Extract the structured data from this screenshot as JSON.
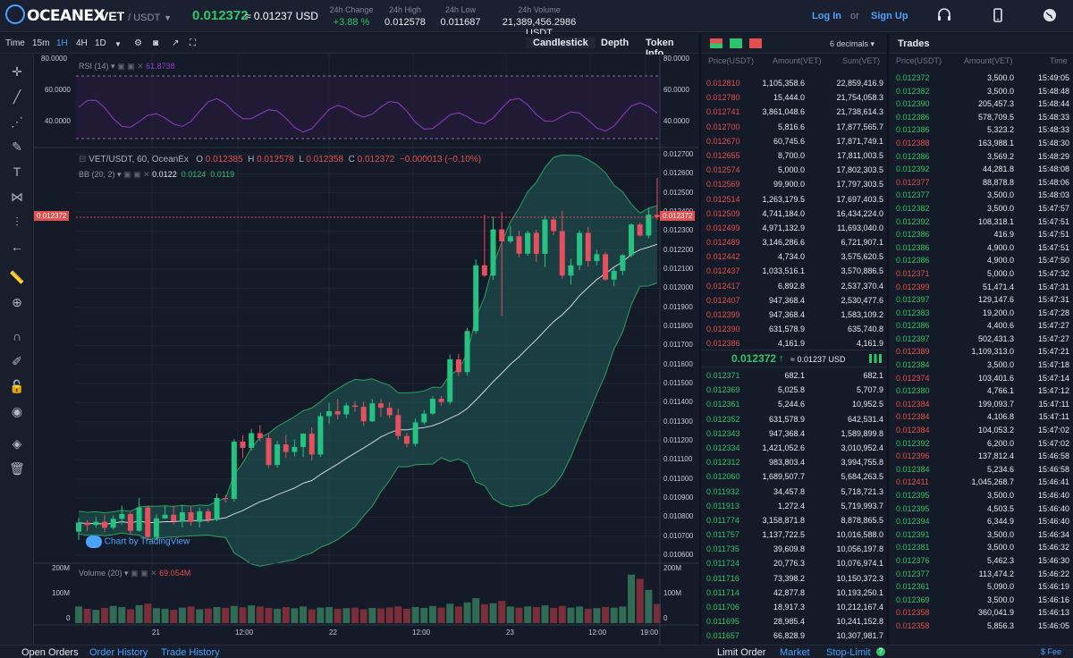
{
  "topbar": {
    "brand": "OCEANEX",
    "pair": "VET",
    "quote": "/ USDT",
    "last_price": "0.012372",
    "last_usd": "≈ 0.01237 USD",
    "stats": [
      {
        "k": "24h Change",
        "v": "+3.88 %"
      },
      {
        "k": "24h High",
        "v": "0.012578"
      },
      {
        "k": "24h Low",
        "v": "0.011687"
      },
      {
        "k": "24h Volume",
        "v": "21,389,456.2986 USDT"
      }
    ],
    "login": "Log In",
    "or": "or",
    "signup": "Sign Up"
  },
  "timeframes": [
    "Time",
    "15m",
    "1H",
    "4H",
    "1D"
  ],
  "view_tabs": [
    "Candlestick",
    "Depth",
    "Token Info"
  ],
  "chart": {
    "rsi_label": "RSI (14)",
    "rsi_value": "61.8738",
    "rsi_ticks": [
      "80.0000",
      "60.0000",
      "40.0000"
    ],
    "legend_symbol": "VET/USDT, 60, OceanEx",
    "o": "0.012385",
    "h": "0.012578",
    "l": "0.012358",
    "c": "0.012372",
    "chg": "−0.000013 (−0.10%)",
    "bb_label": "BB (20, 2)",
    "bb_vals": [
      "0.0122",
      "0.0124",
      "0.0119"
    ],
    "price_ticks": [
      "0.012700",
      "0.012600",
      "0.012500",
      "0.012400",
      "0.012300",
      "0.012200",
      "0.012100",
      "0.012000",
      "0.011900",
      "0.011800",
      "0.011700",
      "0.011600",
      "0.011500",
      "0.011400",
      "0.011300",
      "0.011200",
      "0.011100",
      "0.011000",
      "0.010900",
      "0.010800",
      "0.010700",
      "0.010600"
    ],
    "current_price_tag": "0.012372",
    "watermark": "Chart by TradingView",
    "volume_label": "Volume (20)",
    "volume_value": "69.054M",
    "vol_ticks": [
      "200M",
      "100M",
      "0"
    ],
    "time_ticks": [
      "21",
      "12:00",
      "22",
      "12:00",
      "23",
      "12:00",
      "19:00"
    ]
  },
  "orderbook": {
    "decimals": "6 decimals",
    "headers": [
      "Price(USDT)",
      "Amount(VET)",
      "Sum(VET)"
    ],
    "asks": [
      [
        "0.012810",
        "1,105,358.6",
        "22,859,416.9"
      ],
      [
        "0.012780",
        "15,444.0",
        "21,754,058.3"
      ],
      [
        "0.012741",
        "3,861,048.6",
        "21,738,614.3"
      ],
      [
        "0.012700",
        "5,816.6",
        "17,877,565.7"
      ],
      [
        "0.012670",
        "60,745.6",
        "17,871,749.1"
      ],
      [
        "0.012655",
        "8,700.0",
        "17,811,003.5"
      ],
      [
        "0.012574",
        "5,000.0",
        "17,802,303.5"
      ],
      [
        "0.012569",
        "99,900.0",
        "17,797,303.5"
      ],
      [
        "0.012514",
        "1,263,179.5",
        "17,697,403.5"
      ],
      [
        "0.012509",
        "4,741,184.0",
        "16,434,224.0"
      ],
      [
        "0.012499",
        "4,971,132.9",
        "11,693,040.0"
      ],
      [
        "0.012489",
        "3,146,286.6",
        "6,721,907.1"
      ],
      [
        "0.012442",
        "4,734.0",
        "3,575,620.5"
      ],
      [
        "0.012437",
        "1,033,516.1",
        "3,570,886.5"
      ],
      [
        "0.012417",
        "6,892.8",
        "2,537,370.4"
      ],
      [
        "0.012407",
        "947,368.4",
        "2,530,477.6"
      ],
      [
        "0.012399",
        "947,368.4",
        "1,583,109.2"
      ],
      [
        "0.012390",
        "631,578.9",
        "635,740.8"
      ],
      [
        "0.012386",
        "4,161.9",
        "4,161.9"
      ]
    ],
    "mid_price": "0.012372",
    "mid_usd": "≈ 0.01237 USD",
    "bids": [
      [
        "0.012371",
        "682.1",
        "682.1"
      ],
      [
        "0.012369",
        "5,025.8",
        "5,707.9"
      ],
      [
        "0.012361",
        "5,244.6",
        "10,952.5"
      ],
      [
        "0.012352",
        "631,578.9",
        "642,531.4"
      ],
      [
        "0.012343",
        "947,368.4",
        "1,589,899.8"
      ],
      [
        "0.012334",
        "1,421,052.6",
        "3,010,952.4"
      ],
      [
        "0.012312",
        "983,803.4",
        "3,994,755.8"
      ],
      [
        "0.012060",
        "1,689,507.7",
        "5,684,263.5"
      ],
      [
        "0.011932",
        "34,457.8",
        "5,718,721.3"
      ],
      [
        "0.011913",
        "1,272.4",
        "5,719,993.7"
      ],
      [
        "0.011774",
        "3,158,871.8",
        "8,878,865.5"
      ],
      [
        "0.011757",
        "1,137,722.5",
        "10,016,588.0"
      ],
      [
        "0.011735",
        "39,609.8",
        "10,056,197.8"
      ],
      [
        "0.011724",
        "20,776.3",
        "10,076,974.1"
      ],
      [
        "0.011716",
        "73,398.2",
        "10,150,372.3"
      ],
      [
        "0.011714",
        "42,877.8",
        "10,193,250.1"
      ],
      [
        "0.011706",
        "18,917.3",
        "10,212,167.4"
      ],
      [
        "0.011695",
        "28,985.4",
        "10,241,152.8"
      ],
      [
        "0.011657",
        "66,828.9",
        "10,307,981.7"
      ]
    ]
  },
  "trades": {
    "title": "Trades",
    "headers": [
      "Price(USDT)",
      "Amount(VET)",
      "Time"
    ],
    "rows": [
      [
        "0.012372",
        "3,500.0",
        "15:49:05",
        "g"
      ],
      [
        "0.012382",
        "3,500.0",
        "15:48:48",
        "g"
      ],
      [
        "0.012390",
        "205,457.3",
        "15:48:44",
        "g"
      ],
      [
        "0.012386",
        "578,709.5",
        "15:48:33",
        "g"
      ],
      [
        "0.012386",
        "5,323.2",
        "15:48:33",
        "g"
      ],
      [
        "0.012388",
        "163,988.1",
        "15:48:30",
        "r"
      ],
      [
        "0.012386",
        "3,569.2",
        "15:48:29",
        "g"
      ],
      [
        "0.012392",
        "44,281.8",
        "15:48:08",
        "g"
      ],
      [
        "0.012377",
        "88,878.8",
        "15:48:06",
        "r"
      ],
      [
        "0.012377",
        "3,500.0",
        "15:48:03",
        "g"
      ],
      [
        "0.012382",
        "3,500.0",
        "15:47:57",
        "g"
      ],
      [
        "0.012392",
        "108,318.1",
        "15:47:51",
        "g"
      ],
      [
        "0.012386",
        "416.9",
        "15:47:51",
        "g"
      ],
      [
        "0.012386",
        "4,900.0",
        "15:47:51",
        "g"
      ],
      [
        "0.012386",
        "4,900.0",
        "15:47:50",
        "g"
      ],
      [
        "0.012371",
        "5,000.0",
        "15:47:32",
        "r"
      ],
      [
        "0.012399",
        "51,471.4",
        "15:47:31",
        "r"
      ],
      [
        "0.012397",
        "129,147.6",
        "15:47:31",
        "g"
      ],
      [
        "0.012383",
        "19,200.0",
        "15:47:28",
        "g"
      ],
      [
        "0.012386",
        "4,400.6",
        "15:47:27",
        "g"
      ],
      [
        "0.012397",
        "502,431.3",
        "15:47:27",
        "g"
      ],
      [
        "0.012389",
        "1,109,313.0",
        "15:47:21",
        "r"
      ],
      [
        "0.012384",
        "3,500.0",
        "15:47:18",
        "g"
      ],
      [
        "0.012374",
        "103,401.6",
        "15:47:14",
        "r"
      ],
      [
        "0.012380",
        "4,766.1",
        "15:47:12",
        "g"
      ],
      [
        "0.012384",
        "199,093.7",
        "15:47:11",
        "r"
      ],
      [
        "0.012384",
        "4,106.8",
        "15:47:11",
        "r"
      ],
      [
        "0.012384",
        "104,053.2",
        "15:47:02",
        "r"
      ],
      [
        "0.012392",
        "6,200.0",
        "15:47:02",
        "g"
      ],
      [
        "0.012396",
        "137,812.4",
        "15:46:58",
        "r"
      ],
      [
        "0.012384",
        "5,234.6",
        "15:46:58",
        "g"
      ],
      [
        "0.012411",
        "1,045,268.7",
        "15:46:41",
        "r"
      ],
      [
        "0.012395",
        "3,500.0",
        "15:46:40",
        "g"
      ],
      [
        "0.012395",
        "4,503.5",
        "15:46:40",
        "g"
      ],
      [
        "0.012394",
        "6,344.9",
        "15:46:40",
        "g"
      ],
      [
        "0.012391",
        "3,500.0",
        "15:46:34",
        "g"
      ],
      [
        "0.012381",
        "3,500.0",
        "15:46:32",
        "g"
      ],
      [
        "0.012376",
        "5,462.3",
        "15:46:30",
        "g"
      ],
      [
        "0.012377",
        "113,474.2",
        "15:46:22",
        "g"
      ],
      [
        "0.012361",
        "5,090.0",
        "15:46:19",
        "g"
      ],
      [
        "0.012369",
        "3,500.0",
        "15:46:16",
        "g"
      ],
      [
        "0.012358",
        "360,041.9",
        "15:46:13",
        "r"
      ],
      [
        "0.012358",
        "5,856.3",
        "15:46:05",
        "r"
      ]
    ]
  },
  "bottom": {
    "tabs": [
      "Open Orders",
      "Order History",
      "Trade History"
    ],
    "order_tabs": [
      "Limit Order",
      "Market",
      "Stop-Limit"
    ],
    "fee": "Fee"
  },
  "candles": [
    [
      10723,
      10795,
      10680,
      10771
    ],
    [
      10771,
      10784,
      10725,
      10758
    ],
    [
      10758,
      10800,
      10745,
      10775
    ],
    [
      10775,
      10810,
      10720,
      10744
    ],
    [
      10744,
      10809,
      10734,
      10791
    ],
    [
      10791,
      10860,
      10760,
      10816
    ],
    [
      10816,
      10824,
      10709,
      10728
    ],
    [
      10728,
      10900,
      10723,
      10850
    ],
    [
      10850,
      10860,
      10680,
      10695
    ],
    [
      10695,
      10815,
      10680,
      10793
    ],
    [
      10793,
      10860,
      10790,
      10812
    ],
    [
      10812,
      10860,
      10760,
      10778
    ],
    [
      10778,
      10865,
      10745,
      10825
    ],
    [
      10825,
      10855,
      10755,
      10775
    ],
    [
      10775,
      10850,
      10745,
      10830
    ],
    [
      10830,
      10845,
      10769,
      10785
    ],
    [
      10785,
      10923,
      10778,
      10900
    ],
    [
      10900,
      10915,
      10876,
      10895
    ],
    [
      10895,
      11209,
      10880,
      11195
    ],
    [
      11195,
      11229,
      11110,
      11163
    ],
    [
      11163,
      11262,
      11150,
      11240
    ],
    [
      11240,
      11282,
      11198,
      11214
    ],
    [
      11214,
      11241,
      11058,
      11073
    ],
    [
      11073,
      11200,
      11058,
      11181
    ],
    [
      11181,
      11230,
      11110,
      11141
    ],
    [
      11141,
      11207,
      11118,
      11167
    ],
    [
      11167,
      11240,
      11115,
      11237
    ],
    [
      11237,
      11271,
      11096,
      11128
    ],
    [
      11128,
      11348,
      11115,
      11329
    ],
    [
      11329,
      11398,
      11288,
      11355
    ],
    [
      11355,
      11418,
      11312,
      11338
    ],
    [
      11338,
      11398,
      11318,
      11385
    ],
    [
      11385,
      11408,
      11352,
      11378
    ],
    [
      11378,
      11405,
      11278,
      11302
    ],
    [
      11302,
      11418,
      11298,
      11396
    ],
    [
      11396,
      11418,
      11326,
      11373
    ],
    [
      11373,
      11402,
      11318,
      11334
    ],
    [
      11334,
      11370,
      11205,
      11225
    ],
    [
      11225,
      11242,
      11167,
      11184
    ],
    [
      11184,
      11317,
      11170,
      11296
    ],
    [
      11296,
      11360,
      11284,
      11342
    ],
    [
      11342,
      11435,
      11335,
      11420
    ],
    [
      11420,
      11435,
      11384,
      11403
    ],
    [
      11403,
      11652,
      11390,
      11627
    ],
    [
      11627,
      11654,
      11538,
      11560
    ],
    [
      11560,
      11792,
      11542,
      11775
    ],
    [
      11775,
      12151,
      11760,
      12120
    ],
    [
      12120,
      12386,
      12058,
      12066
    ],
    [
      12066,
      12376,
      12044,
      12308
    ],
    [
      12308,
      12398,
      11854,
      12245
    ],
    [
      12245,
      12326,
      12235,
      12272
    ],
    [
      12272,
      12301,
      12162,
      12181
    ],
    [
      12181,
      12302,
      12170,
      12290
    ],
    [
      12290,
      12306,
      12138,
      12180
    ],
    [
      12180,
      12379,
      12110,
      12360
    ],
    [
      12360,
      12375,
      12278,
      12299
    ],
    [
      12299,
      12404,
      12049,
      12066
    ],
    [
      12066,
      12155,
      12018,
      12120
    ],
    [
      12120,
      12303,
      12095,
      12290
    ],
    [
      12290,
      12321,
      12112,
      12142
    ],
    [
      12142,
      12202,
      12120,
      12178
    ],
    [
      12178,
      12190,
      12039,
      12045
    ],
    [
      12045,
      12105,
      12010,
      12091
    ],
    [
      12091,
      12179,
      12068,
      12173
    ],
    [
      12173,
      12340,
      12160,
      12334
    ],
    [
      12334,
      12345,
      12270,
      12276
    ],
    [
      12276,
      12422,
      12262,
      12385
    ],
    [
      12385,
      12578,
      12358,
      12372
    ]
  ],
  "vol": [
    60,
    52,
    48,
    55,
    62,
    58,
    50,
    65,
    70,
    54,
    52,
    48,
    56,
    60,
    50,
    53,
    58,
    55,
    62,
    57,
    64,
    60,
    55,
    52,
    58,
    54,
    60,
    50,
    56,
    58,
    52,
    54,
    56,
    50,
    55,
    53,
    57,
    60,
    52,
    58,
    55,
    62,
    56,
    70,
    60,
    75,
    90,
    68,
    72,
    80,
    60,
    56,
    60,
    58,
    64,
    55,
    62,
    56,
    60,
    52,
    54,
    58,
    56,
    60,
    175,
    160,
    120,
    69
  ]
}
